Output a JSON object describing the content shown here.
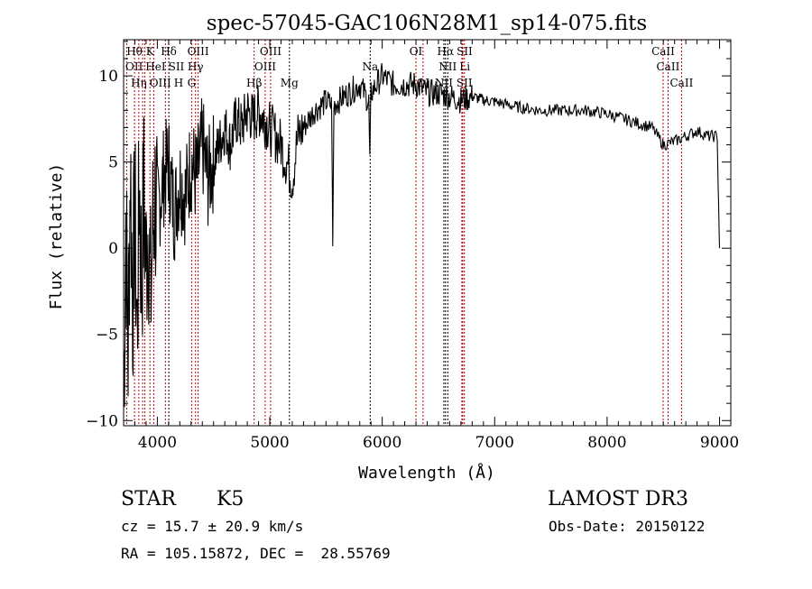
{
  "chart_data": {
    "type": "line",
    "title": "spec-57045-GAC106N28M1_sp14-075.fits",
    "xlabel": "Wavelength (Å)",
    "ylabel": "Flux (relative)",
    "xlim": [
      3700,
      9100
    ],
    "ylim": [
      -10.3,
      12.1
    ],
    "xticks": [
      4000,
      5000,
      6000,
      7000,
      8000,
      9000
    ],
    "yticks": [
      -10,
      -5,
      0,
      5,
      10
    ],
    "grid": false,
    "series": [
      {
        "name": "flux",
        "x": [
          3700,
          3720,
          3740,
          3760,
          3780,
          3800,
          3820,
          3840,
          3860,
          3880,
          3900,
          3920,
          3940,
          3960,
          3980,
          4000,
          4050,
          4100,
          4150,
          4200,
          4250,
          4300,
          4350,
          4400,
          4450,
          4500,
          4550,
          4600,
          4650,
          4700,
          4750,
          4800,
          4850,
          4900,
          4950,
          5000,
          5050,
          5100,
          5150,
          5200,
          5250,
          5300,
          5400,
          5500,
          5550,
          5560,
          5570,
          5600,
          5700,
          5800,
          5880,
          5890,
          5900,
          6000,
          6100,
          6200,
          6300,
          6400,
          6500,
          6600,
          6700,
          6800,
          6900,
          7000,
          7200,
          7400,
          7600,
          7800,
          8000,
          8200,
          8400,
          8500,
          8600,
          8700,
          8800,
          8900,
          8980,
          8990,
          9000
        ],
        "values": [
          -9,
          2,
          -6,
          5,
          -3,
          2,
          -5,
          4,
          -2,
          3,
          -1,
          2,
          -3,
          1,
          3,
          2,
          4,
          5,
          2,
          4,
          3,
          5,
          4,
          6,
          4,
          5,
          6,
          7,
          6,
          7.5,
          7,
          8,
          7.5,
          8,
          7.5,
          7,
          6.5,
          6,
          5,
          4,
          6.5,
          7,
          8,
          8.5,
          8.3,
          0,
          8.3,
          8.5,
          9,
          9.5,
          8.5,
          5,
          9,
          10,
          9.5,
          9.5,
          9.5,
          9,
          9,
          8.8,
          8.6,
          8.8,
          8.6,
          8.5,
          8.2,
          8,
          8,
          8,
          7.8,
          7.4,
          7,
          6,
          6.2,
          6.5,
          6.8,
          6.5,
          6.5,
          3,
          0
        ]
      }
    ],
    "lines": [
      {
        "w": 3797,
        "label": "Hθ",
        "row": 1,
        "color": "#c00000"
      },
      {
        "w": 3934,
        "label": "K",
        "row": 1,
        "color": "#c00000"
      },
      {
        "w": 4102,
        "label": "Hδ",
        "row": 1,
        "color": "#000000"
      },
      {
        "w": 4363,
        "label": "OIII",
        "row": 1,
        "color": "#c00000"
      },
      {
        "w": 5007,
        "label": "OIII",
        "row": 1,
        "color": "#c00000"
      },
      {
        "w": 6300,
        "label": "OI",
        "row": 1,
        "color": "#c00000"
      },
      {
        "w": 6563,
        "label": "Hα",
        "row": 1,
        "color": "#000000"
      },
      {
        "w": 6716,
        "label": "SII",
        "row": 1,
        "color": "#c00000"
      },
      {
        "w": 8498,
        "label": "CaII",
        "row": 1,
        "color": "#c00000"
      },
      {
        "w": 3727,
        "label": "OII",
        "row": 2,
        "color": "#c00000"
      },
      {
        "w": 3889,
        "label": "HeI",
        "row": 2,
        "color": "#c00000"
      },
      {
        "w": 4072,
        "label": "SII",
        "row": 2,
        "color": "#c00000"
      },
      {
        "w": 4340,
        "label": "Hγ",
        "row": 2,
        "color": "#c00000"
      },
      {
        "w": 4959,
        "label": "OIII",
        "row": 2,
        "color": "#c00000"
      },
      {
        "w": 5893,
        "label": "Na",
        "row": 2,
        "color": "#000000"
      },
      {
        "w": 6583,
        "label": "NII",
        "row": 2,
        "color": "#000000"
      },
      {
        "w": 6708,
        "label": "Li",
        "row": 2,
        "color": "#c00000"
      },
      {
        "w": 8542,
        "label": "CaII",
        "row": 2,
        "color": "#c00000"
      },
      {
        "w": 3869,
        "label": "OIII",
        "row": 3,
        "color": "#c00000"
      },
      {
        "w": 3835,
        "label": "Hη",
        "row": 3,
        "color": "#c00000"
      },
      {
        "w": 3968,
        "label": "H",
        "row": 3,
        "color": "#c00000"
      },
      {
        "w": 4305,
        "label": "G",
        "row": 3,
        "color": "#c00000"
      },
      {
        "w": 4861,
        "label": "Hβ",
        "row": 3,
        "color": "#c00000"
      },
      {
        "w": 5175,
        "label": "Mg",
        "row": 3,
        "color": "#000000"
      },
      {
        "w": 6363,
        "label": "OI",
        "row": 3,
        "color": "#c00000"
      },
      {
        "w": 6548,
        "label": "NII",
        "row": 3,
        "color": "#000000"
      },
      {
        "w": 6731,
        "label": "SII",
        "row": 3,
        "color": "#c00000"
      },
      {
        "w": 8662,
        "label": "CaII",
        "row": 3,
        "color": "#c00000"
      }
    ]
  },
  "info": {
    "class": "STAR",
    "subclass": "K5",
    "survey": "LAMOST DR3",
    "cz": "cz = 15.7 ± 20.9 km/s",
    "obs_date": "Obs-Date: 20150122",
    "radec": "RA = 105.15872, DEC =  28.55769"
  }
}
